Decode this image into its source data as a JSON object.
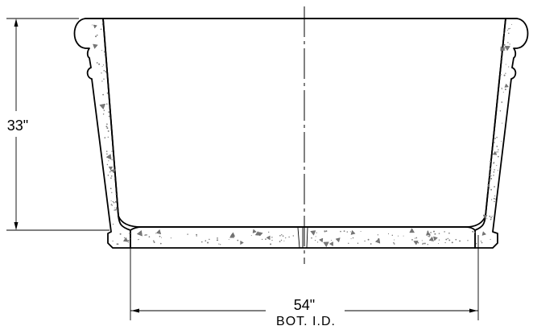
{
  "drawing": {
    "height_dimension": {
      "label": "33\""
    },
    "bottom_dimension": {
      "label": "54\"",
      "sublabel": "BOT. I.D."
    }
  },
  "colors": {
    "line": "#000000",
    "aggregate": "#7a7a7a",
    "background": "#ffffff"
  }
}
